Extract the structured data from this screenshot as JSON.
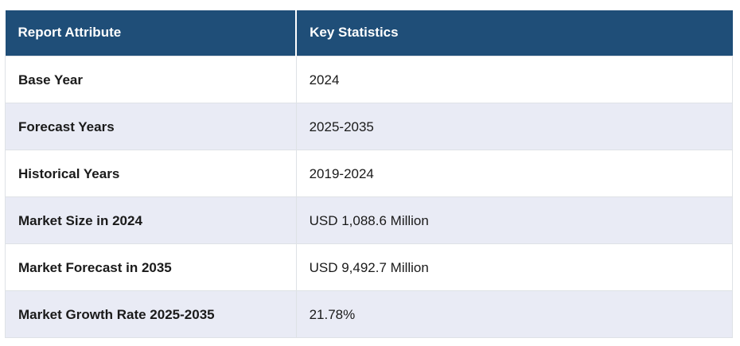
{
  "table": {
    "columns": [
      {
        "label": "Report Attribute"
      },
      {
        "label": "Key Statistics"
      }
    ],
    "rows": [
      {
        "attribute": "Base Year",
        "value": "2024"
      },
      {
        "attribute": "Forecast Years",
        "value": "2025-2035"
      },
      {
        "attribute": "Historical Years",
        "value": "2019-2024"
      },
      {
        "attribute": "Market Size in 2024",
        "value": "USD 1,088.6 Million"
      },
      {
        "attribute": "Market Forecast in 2035",
        "value": "USD 9,492.7 Million"
      },
      {
        "attribute": "Market Growth Rate 2025-2035",
        "value": "21.78%"
      }
    ],
    "colors": {
      "header_bg": "#1F4E78",
      "header_text": "#FFFFFF",
      "stripe_bg": "#E9EBF5",
      "row_bg": "#FFFFFF",
      "border": "#DEE2E6",
      "text": "#1A1A1A"
    }
  },
  "chart_data": {
    "type": "table",
    "title": "",
    "columns": [
      "Report Attribute",
      "Key Statistics"
    ],
    "rows": [
      [
        "Base Year",
        "2024"
      ],
      [
        "Forecast Years",
        "2025-2035"
      ],
      [
        "Historical Years",
        "2019-2024"
      ],
      [
        "Market Size in 2024",
        "USD 1,088.6 Million"
      ],
      [
        "Market Forecast in 2035",
        "USD 9,492.7 Million"
      ],
      [
        "Market Growth Rate 2025-2035",
        "21.78%"
      ]
    ]
  }
}
